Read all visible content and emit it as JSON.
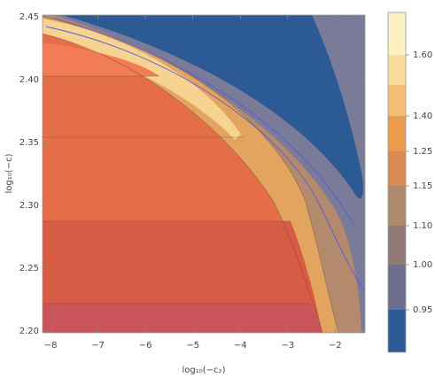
{
  "chart_data": {
    "type": "contour",
    "x_label": "log₁₀(−c₂)",
    "y_label": "log₁₀(−c)",
    "xlim": [
      -8.17,
      -1.37
    ],
    "ylim": [
      2.1986,
      2.4514
    ],
    "xticks": [
      {
        "value": -8,
        "label": "−8"
      },
      {
        "value": -7,
        "label": "−7"
      },
      {
        "value": -6,
        "label": "−6"
      },
      {
        "value": -5,
        "label": "−5"
      },
      {
        "value": -4,
        "label": "−4"
      },
      {
        "value": -3,
        "label": "−3"
      },
      {
        "value": -2,
        "label": "−2"
      }
    ],
    "yticks": [
      {
        "value": 2.2,
        "label": "2.20"
      },
      {
        "value": 2.25,
        "label": "2.25"
      },
      {
        "value": 2.3,
        "label": "2.30"
      },
      {
        "value": 2.35,
        "label": "2.35"
      },
      {
        "value": 2.4,
        "label": "2.40"
      },
      {
        "value": 2.45,
        "label": "2.45"
      }
    ],
    "colorbar": {
      "colors": [
        "#fdf1c3",
        "#f9dc9c",
        "#f2bd74",
        "#ec9b4c",
        "#d88a50",
        "#b08a6c",
        "#907a78",
        "#6e6f8e",
        "#2c5a94"
      ],
      "ticks": [
        {
          "value": 1.6,
          "label": "1.60"
        },
        {
          "value": 1.4,
          "label": "1.40"
        },
        {
          "value": 1.25,
          "label": "1.25"
        },
        {
          "value": 1.15,
          "label": "1.15"
        },
        {
          "value": 1.1,
          "label": "1.10"
        },
        {
          "value": 1.0,
          "label": "1.00"
        },
        {
          "value": 0.95,
          "label": "0.95"
        }
      ]
    }
  }
}
